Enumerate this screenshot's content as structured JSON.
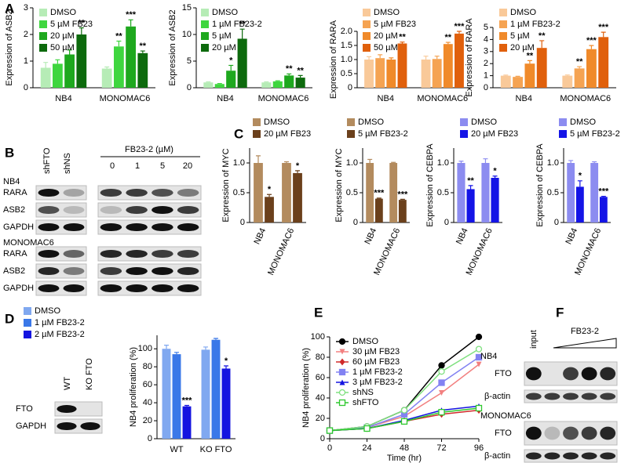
{
  "panel_labels": [
    "A",
    "B",
    "C",
    "D",
    "E",
    "F"
  ],
  "blot_B": {
    "lanes": [
      "shFTO",
      "shNS"
    ],
    "treatment": "FB23-2 (µM)",
    "doses": [
      0,
      1,
      5,
      20
    ],
    "groups": [
      {
        "cell_line": "NB4",
        "rows": [
          "RARA",
          "ASB2",
          "GAPDH"
        ]
      },
      {
        "cell_line": "MONOMAC6",
        "rows": [
          "RARA",
          "ASB2",
          "GAPDH"
        ]
      }
    ]
  },
  "blot_D": {
    "lanes": [
      "WT",
      "KO FTO"
    ],
    "rows": [
      "FTO",
      "GAPDH"
    ]
  },
  "blot_F": {
    "lane": "input",
    "treatment": "FB23-2",
    "groups": [
      {
        "cell_line": "NB4",
        "rows": [
          "FTO",
          "β-actin"
        ]
      },
      {
        "cell_line": "MONOMAC6",
        "rows": [
          "FTO",
          "β-actin"
        ]
      }
    ]
  },
  "chart_data": [
    {
      "type": "bar",
      "y_label": "Expression of ASB2",
      "categories": [
        "NB4",
        "MONOMAC6"
      ],
      "ylim": [
        0,
        3
      ],
      "yticks": [
        0,
        1,
        2,
        3
      ],
      "series": [
        {
          "name": "DMSO",
          "color": "#b6ecb6",
          "values": [
            0.75,
            0.72
          ],
          "errors": [
            0.2,
            0.06
          ],
          "significance": [
            null,
            null
          ]
        },
        {
          "name": "5 µM FB23",
          "color": "#3fd63f",
          "values": [
            0.9,
            1.55
          ],
          "errors": [
            0.15,
            0.2
          ],
          "significance": [
            null,
            "**"
          ]
        },
        {
          "name": "20 µM",
          "color": "#1ea81e",
          "values": [
            1.25,
            2.3
          ],
          "errors": [
            0.17,
            0.25
          ],
          "significance": [
            null,
            "***"
          ]
        },
        {
          "name": "50 µM",
          "color": "#0d6a0d",
          "values": [
            2.0,
            1.3
          ],
          "errors": [
            0.25,
            0.08
          ],
          "significance": [
            "**",
            "**"
          ]
        }
      ]
    },
    {
      "type": "bar",
      "y_label": "Expression of ASB2",
      "categories": [
        "NB4",
        "MONOMAC6"
      ],
      "ylim": [
        0,
        15
      ],
      "yticks": [
        0,
        5,
        10,
        15
      ],
      "series": [
        {
          "name": "DMSO",
          "color": "#b6ecb6",
          "values": [
            1.0,
            1.0
          ],
          "errors": [
            0.1,
            0.1
          ],
          "significance": [
            null,
            null
          ]
        },
        {
          "name": "1 µM FB23-2",
          "color": "#3fd63f",
          "values": [
            0.7,
            1.2
          ],
          "errors": [
            0.1,
            0.1
          ],
          "significance": [
            null,
            null
          ]
        },
        {
          "name": "5 µM",
          "color": "#1ea81e",
          "values": [
            3.2,
            2.3
          ],
          "errors": [
            1.0,
            0.3
          ],
          "significance": [
            "*",
            "**"
          ]
        },
        {
          "name": "20 µM",
          "color": "#0d6a0d",
          "values": [
            9.2,
            1.9
          ],
          "errors": [
            1.8,
            0.4
          ],
          "significance": [
            "**",
            "**"
          ]
        }
      ]
    },
    {
      "type": "bar",
      "y_label": "Expression of RARA",
      "categories": [
        "NB4",
        "MONOMAC6"
      ],
      "ylim": [
        0,
        2.0
      ],
      "yticks": [
        0,
        0.5,
        {
          "value": 1.0,
          "label": "1.0"
        },
        1.5,
        {
          "value": 2.0,
          "label": "2.0"
        }
      ],
      "series": [
        {
          "name": "DMSO",
          "color": "#f9c999",
          "values": [
            1.0,
            1.0
          ],
          "errors": [
            0.1,
            0.12
          ],
          "significance": [
            null,
            null
          ]
        },
        {
          "name": "5 µM FB23",
          "color": "#f5a352",
          "values": [
            1.05,
            1.02
          ],
          "errors": [
            0.12,
            0.1
          ],
          "significance": [
            null,
            null
          ]
        },
        {
          "name": "20 µM",
          "color": "#f08a2a",
          "values": [
            1.0,
            1.55
          ],
          "errors": [
            0.06,
            0.06
          ],
          "significance": [
            null,
            "**"
          ]
        },
        {
          "name": "50 µM",
          "color": "#e0600c",
          "values": [
            1.57,
            1.92
          ],
          "errors": [
            0.05,
            0.08
          ],
          "significance": [
            "**",
            "***"
          ]
        }
      ]
    },
    {
      "type": "bar",
      "y_label": "Expression of RARA",
      "categories": [
        "NB4",
        "MONOMAC6"
      ],
      "ylim": [
        0,
        5
      ],
      "yticks": [
        0,
        1,
        2,
        3,
        4,
        5
      ],
      "series": [
        {
          "name": "DMSO",
          "color": "#f9c999",
          "values": [
            1.0,
            1.0
          ],
          "errors": [
            0.05,
            0.06
          ],
          "significance": [
            null,
            null
          ]
        },
        {
          "name": "1 µM FB23-2",
          "color": "#f5a352",
          "values": [
            0.9,
            1.6
          ],
          "errors": [
            0.05,
            0.15
          ],
          "significance": [
            null,
            "**"
          ]
        },
        {
          "name": "5 µM",
          "color": "#f08a2a",
          "values": [
            2.0,
            3.2
          ],
          "errors": [
            0.25,
            0.3
          ],
          "significance": [
            "**",
            "***"
          ]
        },
        {
          "name": "20 µM",
          "color": "#e0600c",
          "values": [
            3.3,
            4.2
          ],
          "errors": [
            0.6,
            0.4
          ],
          "significance": [
            "**",
            "***"
          ]
        }
      ]
    },
    {
      "type": "bar",
      "y_label": "Expression of MYC",
      "categories": [
        "NB4",
        "MONOMAC6"
      ],
      "ylim": [
        0,
        1.25
      ],
      "yticks": [
        0,
        0.5,
        {
          "value": 1.0,
          "label": "1.0"
        }
      ],
      "rotate_categories": true,
      "series": [
        {
          "name": "DMSO",
          "color": "#b38b5e",
          "values": [
            1.0,
            1.0
          ],
          "errors": [
            0.12,
            0.02
          ],
          "significance": [
            null,
            null
          ]
        },
        {
          "name": "20 µM FB23",
          "color": "#6b401c",
          "values": [
            0.43,
            0.83
          ],
          "errors": [
            0.04,
            0.04
          ],
          "significance": [
            "*",
            "*"
          ]
        }
      ]
    },
    {
      "type": "bar",
      "y_label": "Expression of MYC",
      "categories": [
        "NB4",
        "MONOMAC6"
      ],
      "ylim": [
        0,
        1.25
      ],
      "yticks": [
        0,
        0.5,
        {
          "value": 1.0,
          "label": "1.0"
        }
      ],
      "rotate_categories": true,
      "series": [
        {
          "name": "DMSO",
          "color": "#b38b5e",
          "values": [
            1.0,
            1.0
          ],
          "errors": [
            0.06,
            0.01
          ],
          "significance": [
            null,
            null
          ]
        },
        {
          "name": "5 µM FB23-2",
          "color": "#6b401c",
          "values": [
            0.4,
            0.38
          ],
          "errors": [
            0.01,
            0.01
          ],
          "significance": [
            "***",
            "***"
          ]
        }
      ]
    },
    {
      "type": "bar",
      "y_label": "Expression of CEBPA",
      "categories": [
        "NB4",
        "MONOMAC6"
      ],
      "ylim": [
        0,
        1.25
      ],
      "yticks": [
        0,
        0.5,
        {
          "value": 1.0,
          "label": "1.0"
        }
      ],
      "rotate_categories": true,
      "series": [
        {
          "name": "DMSO",
          "color": "#8c8cf0",
          "values": [
            1.0,
            1.0
          ],
          "errors": [
            0.03,
            0.07
          ],
          "significance": [
            null,
            null
          ]
        },
        {
          "name": "20 µM FB23",
          "color": "#1414e6",
          "values": [
            0.56,
            0.75
          ],
          "errors": [
            0.06,
            0.03
          ],
          "significance": [
            "**",
            "*"
          ]
        }
      ]
    },
    {
      "type": "bar",
      "y_label": "Expression of CEBPA",
      "categories": [
        "NB4",
        "MONOMAC6"
      ],
      "ylim": [
        0,
        1.25
      ],
      "yticks": [
        0,
        0.5,
        {
          "value": 1.0,
          "label": "1.0"
        }
      ],
      "rotate_categories": true,
      "series": [
        {
          "name": "DMSO",
          "color": "#8c8cf0",
          "values": [
            1.0,
            1.0
          ],
          "errors": [
            0.04,
            0.02
          ],
          "significance": [
            null,
            null
          ]
        },
        {
          "name": "5 µM FB23-2",
          "color": "#1414e6",
          "values": [
            0.6,
            0.43
          ],
          "errors": [
            0.1,
            0.01
          ],
          "significance": [
            "*",
            "***"
          ]
        }
      ]
    },
    {
      "type": "bar",
      "y_label": "NB4 proliferation (%)",
      "categories": [
        "WT",
        "KO FTO"
      ],
      "ylim": [
        0,
        115
      ],
      "yticks": [
        0,
        20,
        40,
        60,
        80,
        100
      ],
      "series": [
        {
          "name": "DMSO",
          "color": "#80a8f0",
          "values": [
            100,
            99
          ],
          "errors": [
            4,
            3
          ],
          "significance": [
            null,
            null
          ]
        },
        {
          "name": "1 µM FB23-2",
          "color": "#3a78e8",
          "values": [
            94,
            110
          ],
          "errors": [
            2,
            1.5
          ],
          "significance": [
            null,
            null
          ]
        },
        {
          "name": "2 µM FB23-2",
          "color": "#1414e0",
          "values": [
            36,
            78
          ],
          "errors": [
            1,
            3
          ],
          "significance": [
            "***",
            "*"
          ]
        }
      ]
    },
    {
      "type": "line",
      "y_label": "NB4 proliferation (%)",
      "x_label": "Time (hr)",
      "x": [
        0,
        24,
        48,
        72,
        96
      ],
      "xlim": [
        0,
        96
      ],
      "xticks": [
        0,
        24,
        48,
        72,
        96
      ],
      "ylim": [
        0,
        100
      ],
      "yticks": [
        0,
        20,
        40,
        60,
        80,
        100
      ],
      "series": [
        {
          "name": "DMSO",
          "color": "#000000",
          "marker": "circle",
          "values": [
            8,
            12,
            28,
            72,
            100
          ]
        },
        {
          "name": "30 µM FB23",
          "color": "#f28080",
          "marker": "triangle-down",
          "values": [
            8,
            11,
            22,
            45,
            73
          ]
        },
        {
          "name": "60 µM FB23",
          "color": "#d02a2a",
          "marker": "diamond",
          "values": [
            8,
            10,
            17,
            24,
            28
          ]
        },
        {
          "name": "1 µM FB23-2",
          "color": "#8282f2",
          "marker": "square",
          "values": [
            8,
            11,
            24,
            55,
            80
          ]
        },
        {
          "name": "3 µM FB23-2",
          "color": "#1414e0",
          "marker": "triangle-up",
          "values": [
            8,
            10,
            18,
            28,
            32
          ]
        },
        {
          "name": "shNS",
          "color": "#7fe07f",
          "marker": "open-circle",
          "values": [
            8,
            12,
            28,
            66,
            88
          ]
        },
        {
          "name": "shFTO",
          "color": "#2ec82e",
          "marker": "open-square",
          "values": [
            8,
            10,
            17,
            26,
            30
          ]
        }
      ]
    }
  ]
}
